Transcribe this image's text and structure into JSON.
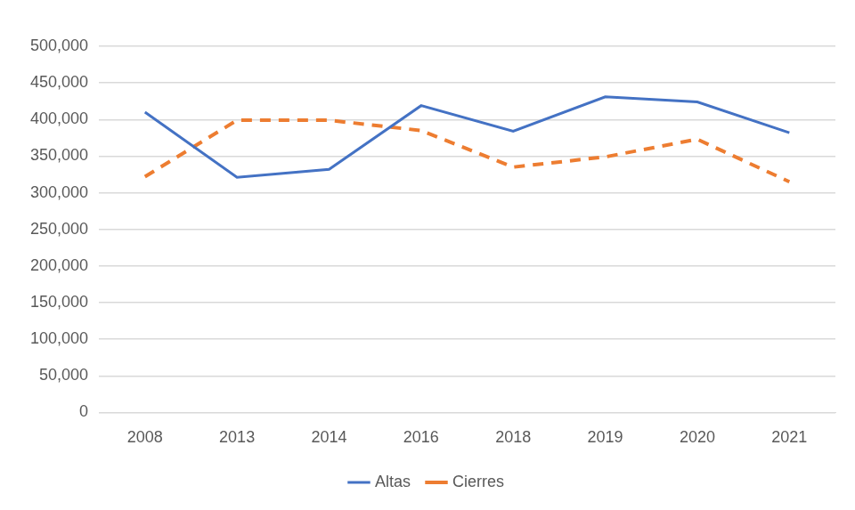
{
  "chart_data": {
    "type": "line",
    "categories": [
      "2008",
      "2013",
      "2014",
      "2016",
      "2018",
      "2019",
      "2020",
      "2021"
    ],
    "series": [
      {
        "name": "Altas",
        "color": "#4472c4",
        "line_style": "solid",
        "marker": "none",
        "values": [
          410000,
          321000,
          332000,
          419000,
          384000,
          431000,
          424000,
          382000
        ]
      },
      {
        "name": "Cierres",
        "color": "#ed7d31",
        "line_style": "dashed",
        "marker": "none",
        "values": [
          322000,
          399000,
          399000,
          385000,
          335000,
          349000,
          373000,
          315000
        ]
      }
    ],
    "ylim": [
      0,
      500000
    ],
    "yticks": [
      0,
      {
        "value": 50000,
        "label": "50,000"
      },
      {
        "value": 100000,
        "label": "100,000"
      },
      {
        "value": 150000,
        "label": "150,000"
      },
      {
        "value": 200000,
        "label": "200,000"
      },
      {
        "value": 250000,
        "label": "250,000"
      },
      {
        "value": 300000,
        "label": "300,000"
      },
      {
        "value": 350000,
        "label": "350,000"
      },
      {
        "value": 400000,
        "label": "400,000"
      },
      {
        "value": 450000,
        "label": "450,000"
      },
      {
        "value": 500000,
        "label": "500,000"
      }
    ],
    "grid": true,
    "legend": "bottom"
  }
}
